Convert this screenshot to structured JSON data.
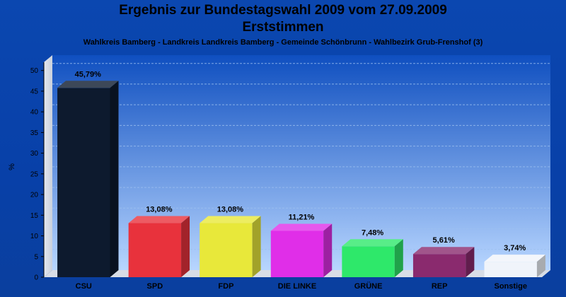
{
  "chart_data": {
    "type": "bar",
    "title": "Ergebnis zur Bundestagswahl 2009 vom 27.09.2009",
    "subtitle": "Erststimmen",
    "caption": "Wahlkreis Bamberg - Landkreis Landkreis Bamberg - Gemeinde Schönbrunn - Wahlbezirk Grub-Frenshof (3)",
    "xlabel": "",
    "ylabel": "%",
    "ylim": [
      0,
      52
    ],
    "yticks": [
      0,
      5,
      10,
      15,
      20,
      25,
      30,
      35,
      40,
      45,
      50
    ],
    "grid": true,
    "categories": [
      "CSU",
      "SPD",
      "FDP",
      "DIE LINKE",
      "GRÜNE",
      "REP",
      "Sonstige"
    ],
    "values": [
      45.79,
      13.08,
      13.08,
      11.21,
      7.48,
      5.61,
      3.74
    ],
    "value_labels": [
      "45,79%",
      "13,08%",
      "13,08%",
      "11,21%",
      "7,48%",
      "5,61%",
      "3,74%"
    ],
    "colors": [
      "#0d1a2e",
      "#e8323c",
      "#e8e83a",
      "#e02ee8",
      "#2ee86a",
      "#8a2a6e",
      "#f0f4fa"
    ]
  }
}
